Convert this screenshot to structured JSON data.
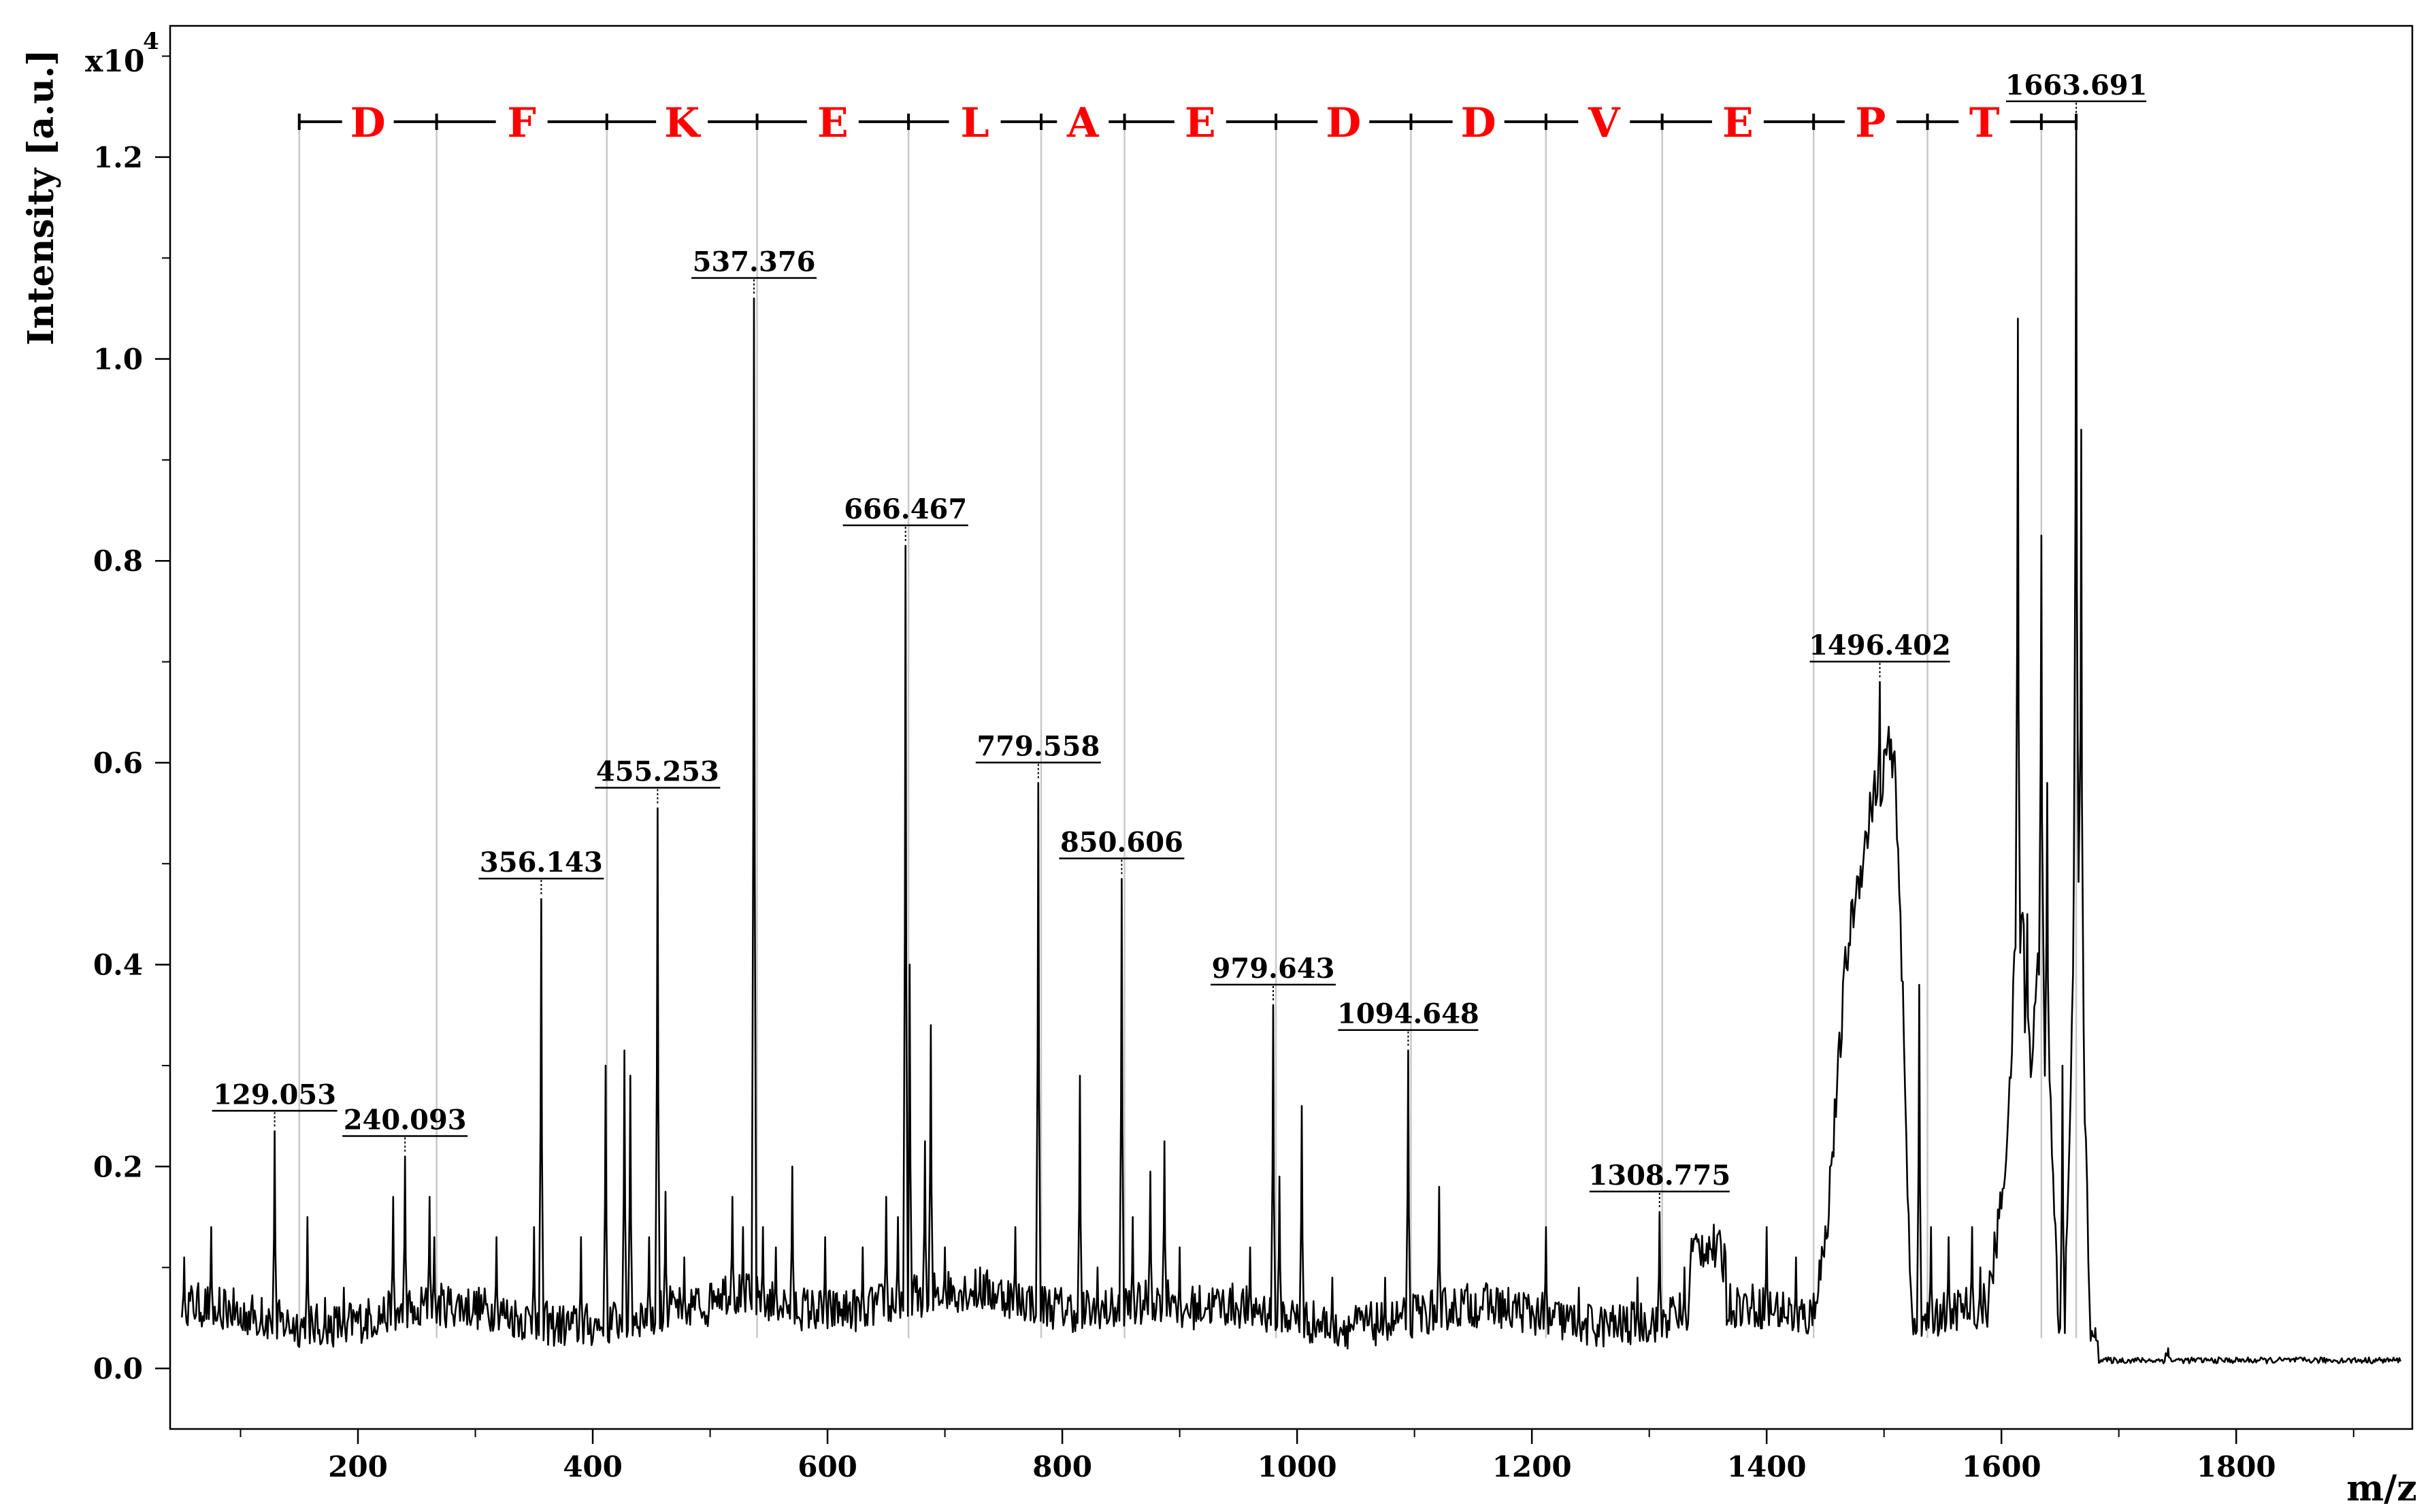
{
  "chart_data": {
    "type": "line",
    "xlabel": "m/z",
    "ylabel": "Intensity [a.u.]",
    "y_multiplier": "x10",
    "y_multiplier_exp": "4",
    "xlim": [
      40,
      1950
    ],
    "ylim": [
      -0.06,
      1.33
    ],
    "x_ticks": [
      200,
      400,
      600,
      800,
      1000,
      1200,
      1400,
      1600,
      1800
    ],
    "x_tick_labels": [
      "200",
      "400",
      "600",
      "800",
      "1000",
      "1200",
      "1400",
      "1600",
      "1800"
    ],
    "y_ticks": [
      0.0,
      0.2,
      0.4,
      0.6,
      0.8,
      1.0,
      1.2
    ],
    "y_tick_labels": [
      "0.0",
      "0.2",
      "0.4",
      "0.6",
      "0.8",
      "1.0",
      "1.2"
    ],
    "grid": false,
    "line_color": "#000000",
    "ladder_color": "#ff0000",
    "peaks": [
      {
        "mz": 129.053,
        "label": "129.053",
        "intensity": 0.235
      },
      {
        "mz": 240.093,
        "label": "240.093",
        "intensity": 0.21
      },
      {
        "mz": 356.143,
        "label": "356.143",
        "intensity": 0.465
      },
      {
        "mz": 455.253,
        "label": "455.253",
        "intensity": 0.555
      },
      {
        "mz": 537.376,
        "label": "537.376",
        "intensity": 1.06
      },
      {
        "mz": 666.467,
        "label": "666.467",
        "intensity": 0.815
      },
      {
        "mz": 779.558,
        "label": "779.558",
        "intensity": 0.58
      },
      {
        "mz": 850.606,
        "label": "850.606",
        "intensity": 0.485
      },
      {
        "mz": 979.643,
        "label": "979.643",
        "intensity": 0.36
      },
      {
        "mz": 1094.648,
        "label": "1094.648",
        "intensity": 0.315
      },
      {
        "mz": 1308.775,
        "label": "1308.775",
        "intensity": 0.155
      },
      {
        "mz": 1496.402,
        "label": "1496.402",
        "intensity": 0.68
      },
      {
        "mz": 1663.691,
        "label": "1663.691",
        "intensity": 1.235
      }
    ],
    "sequence_ladder": {
      "y_level": 1.235,
      "boundaries": [
        150,
        267,
        412,
        540,
        669,
        782,
        853,
        982,
        1097,
        1212,
        1311,
        1440,
        1537,
        1634,
        1663.691
      ],
      "residues": [
        "D",
        "F",
        "K",
        "E",
        "L",
        "A",
        "E",
        "D",
        "D",
        "V",
        "E",
        "P",
        "T"
      ]
    },
    "minor_peaks": [
      [
        52,
        0.11
      ],
      [
        75,
        0.14
      ],
      [
        82,
        0.08
      ],
      [
        100,
        0.06
      ],
      [
        118,
        0.07
      ],
      [
        157,
        0.15
      ],
      [
        172,
        0.07
      ],
      [
        188,
        0.08
      ],
      [
        230,
        0.17
      ],
      [
        251,
        0.06
      ],
      [
        261,
        0.17
      ],
      [
        265,
        0.13
      ],
      [
        318,
        0.13
      ],
      [
        350,
        0.14
      ],
      [
        390,
        0.13
      ],
      [
        411,
        0.3
      ],
      [
        427,
        0.315
      ],
      [
        432,
        0.29
      ],
      [
        448,
        0.13
      ],
      [
        462,
        0.175
      ],
      [
        478,
        0.11
      ],
      [
        519,
        0.17
      ],
      [
        528,
        0.14
      ],
      [
        545,
        0.14
      ],
      [
        556,
        0.12
      ],
      [
        570,
        0.2
      ],
      [
        598,
        0.13
      ],
      [
        630,
        0.12
      ],
      [
        650,
        0.17
      ],
      [
        660,
        0.15
      ],
      [
        670,
        0.4
      ],
      [
        683,
        0.225
      ],
      [
        688,
        0.34
      ],
      [
        700,
        0.12
      ],
      [
        730,
        0.1
      ],
      [
        760,
        0.14
      ],
      [
        815,
        0.29
      ],
      [
        830,
        0.1
      ],
      [
        860,
        0.15
      ],
      [
        875,
        0.195
      ],
      [
        887,
        0.225
      ],
      [
        900,
        0.12
      ],
      [
        960,
        0.12
      ],
      [
        985,
        0.19
      ],
      [
        1004,
        0.26
      ],
      [
        1030,
        0.09
      ],
      [
        1075,
        0.09
      ],
      [
        1121,
        0.18
      ],
      [
        1180,
        0.08
      ],
      [
        1212,
        0.14
      ],
      [
        1240,
        0.08
      ],
      [
        1290,
        0.09
      ],
      [
        1330,
        0.1
      ],
      [
        1400,
        0.14
      ],
      [
        1425,
        0.11
      ],
      [
        1530,
        0.38
      ],
      [
        1540,
        0.14
      ],
      [
        1555,
        0.13
      ],
      [
        1575,
        0.14
      ],
      [
        1582,
        0.1
      ],
      [
        1614,
        1.04
      ],
      [
        1622,
        0.45
      ],
      [
        1634,
        0.825
      ],
      [
        1639,
        0.58
      ],
      [
        1652,
        0.3
      ],
      [
        1668,
        0.93
      ],
      [
        1680,
        0.04
      ],
      [
        1742,
        0.02
      ]
    ],
    "envelopes": [
      [
        1440,
        0.04
      ],
      [
        1450,
        0.1
      ],
      [
        1460,
        0.25
      ],
      [
        1467,
        0.37
      ],
      [
        1475,
        0.44
      ],
      [
        1485,
        0.5
      ],
      [
        1490,
        0.54
      ],
      [
        1497,
        0.56
      ],
      [
        1503,
        0.59
      ],
      [
        1510,
        0.56
      ],
      [
        1515,
        0.38
      ],
      [
        1520,
        0.15
      ],
      [
        1524,
        0.03
      ],
      [
        1335,
        0.09
      ],
      [
        1350,
        0.1
      ],
      [
        1365,
        0.08
      ],
      [
        1590,
        0.05
      ],
      [
        1600,
        0.14
      ],
      [
        1607,
        0.24
      ],
      [
        1612,
        0.4
      ],
      [
        1618,
        0.42
      ],
      [
        1625,
        0.25
      ],
      [
        1632,
        0.42
      ],
      [
        1642,
        0.22
      ],
      [
        1650,
        -0.02
      ],
      [
        1658,
        0.18
      ],
      [
        1663,
        0.5
      ],
      [
        1669,
        0.3
      ],
      [
        1675,
        0.06
      ]
    ]
  }
}
